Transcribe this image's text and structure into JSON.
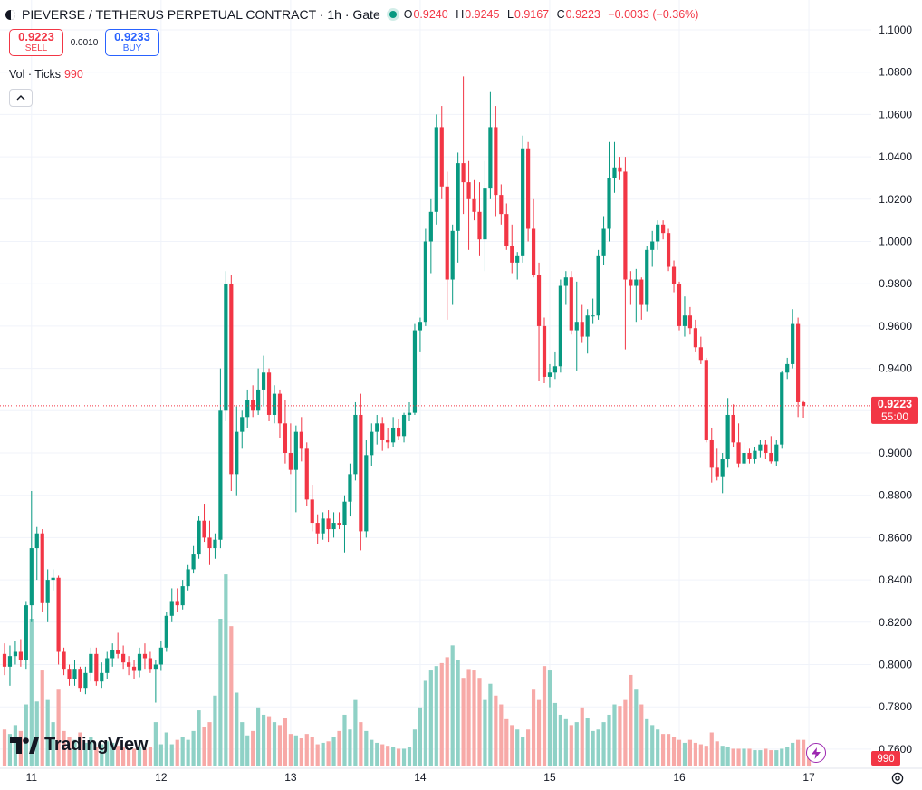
{
  "header": {
    "title": "PIEVERSE / TETHERUS PERPETUAL CONTRACT · 1h · Gate",
    "ohlc": {
      "o_label": "O",
      "o": "0.9240",
      "h_label": "H",
      "h": "0.9245",
      "l_label": "L",
      "l": "0.9167",
      "c_label": "C",
      "c": "0.9223",
      "change": "−0.0033 (−0.36%)"
    }
  },
  "trade": {
    "sell_price": "0.9223",
    "sell_label": "SELL",
    "spread": "0.0010",
    "buy_price": "0.9233",
    "buy_label": "BUY"
  },
  "volume_indicator": {
    "label": "Vol · Ticks",
    "value": "990"
  },
  "price_badge": {
    "price": "0.9223",
    "countdown": "55:00"
  },
  "volume_badge": "990",
  "branding": "TradingView",
  "colors": {
    "up": "#089981",
    "down": "#f23645",
    "up_vol": "#8fd1c6",
    "down_vol": "#f7a9a7",
    "grid": "#f0f3fa"
  },
  "chart_data": {
    "type": "candlestick",
    "interval": "1h",
    "ylim": [
      0.75,
      1.1
    ],
    "y_ticks": [
      "1.1000",
      "1.0800",
      "1.0600",
      "1.0400",
      "1.0200",
      "1.0000",
      "0.9800",
      "0.9600",
      "0.9400",
      "0.9200",
      "0.9000",
      "0.8800",
      "0.8600",
      "0.8400",
      "0.8200",
      "0.8000",
      "0.7800",
      "0.7600"
    ],
    "x_ticks": [
      {
        "label": "11",
        "candle": 5
      },
      {
        "label": "12",
        "candle": 29
      },
      {
        "label": "13",
        "candle": 53
      },
      {
        "label": "14",
        "candle": 77
      },
      {
        "label": "15",
        "candle": 101
      },
      {
        "label": "16",
        "candle": 125
      },
      {
        "label": "17",
        "candle": 149
      }
    ],
    "candles": [
      [
        0.805,
        0.81,
        0.795,
        0.799
      ],
      [
        0.799,
        0.809,
        0.79,
        0.804
      ],
      [
        0.804,
        0.811,
        0.8,
        0.806
      ],
      [
        0.806,
        0.812,
        0.799,
        0.802
      ],
      [
        0.802,
        0.83,
        0.798,
        0.828
      ],
      [
        0.828,
        0.882,
        0.82,
        0.855
      ],
      [
        0.855,
        0.865,
        0.84,
        0.862
      ],
      [
        0.862,
        0.864,
        0.825,
        0.829
      ],
      [
        0.829,
        0.845,
        0.82,
        0.84
      ],
      [
        0.84,
        0.845,
        0.835,
        0.841
      ],
      [
        0.841,
        0.842,
        0.8,
        0.806
      ],
      [
        0.806,
        0.808,
        0.795,
        0.798
      ],
      [
        0.798,
        0.8,
        0.79,
        0.793
      ],
      [
        0.793,
        0.802,
        0.79,
        0.798
      ],
      [
        0.798,
        0.799,
        0.787,
        0.789
      ],
      [
        0.789,
        0.799,
        0.786,
        0.796
      ],
      [
        0.796,
        0.808,
        0.792,
        0.805
      ],
      [
        0.805,
        0.808,
        0.79,
        0.792
      ],
      [
        0.792,
        0.801,
        0.789,
        0.796
      ],
      [
        0.796,
        0.806,
        0.793,
        0.803
      ],
      [
        0.803,
        0.81,
        0.799,
        0.807
      ],
      [
        0.807,
        0.815,
        0.803,
        0.805
      ],
      [
        0.805,
        0.809,
        0.798,
        0.801
      ],
      [
        0.801,
        0.804,
        0.795,
        0.799
      ],
      [
        0.799,
        0.802,
        0.793,
        0.797
      ],
      [
        0.797,
        0.808,
        0.794,
        0.805
      ],
      [
        0.805,
        0.81,
        0.798,
        0.803
      ],
      [
        0.803,
        0.806,
        0.796,
        0.798
      ],
      [
        0.798,
        0.802,
        0.782,
        0.8
      ],
      [
        0.8,
        0.811,
        0.797,
        0.808
      ],
      [
        0.808,
        0.825,
        0.806,
        0.823
      ],
      [
        0.823,
        0.836,
        0.82,
        0.83
      ],
      [
        0.83,
        0.836,
        0.825,
        0.828
      ],
      [
        0.828,
        0.84,
        0.826,
        0.837
      ],
      [
        0.837,
        0.847,
        0.835,
        0.845
      ],
      [
        0.845,
        0.856,
        0.843,
        0.852
      ],
      [
        0.852,
        0.87,
        0.85,
        0.868
      ],
      [
        0.868,
        0.876,
        0.858,
        0.86
      ],
      [
        0.86,
        0.868,
        0.847,
        0.855
      ],
      [
        0.855,
        0.862,
        0.85,
        0.859
      ],
      [
        0.859,
        0.94,
        0.855,
        0.92
      ],
      [
        0.92,
        0.986,
        0.915,
        0.98
      ],
      [
        0.98,
        0.984,
        0.882,
        0.89
      ],
      [
        0.89,
        0.922,
        0.88,
        0.91
      ],
      [
        0.91,
        0.92,
        0.902,
        0.917
      ],
      [
        0.917,
        0.93,
        0.912,
        0.925
      ],
      [
        0.925,
        0.932,
        0.917,
        0.92
      ],
      [
        0.92,
        0.94,
        0.918,
        0.93
      ],
      [
        0.93,
        0.946,
        0.922,
        0.938
      ],
      [
        0.938,
        0.94,
        0.915,
        0.918
      ],
      [
        0.918,
        0.932,
        0.914,
        0.928
      ],
      [
        0.928,
        0.93,
        0.907,
        0.914
      ],
      [
        0.914,
        0.925,
        0.895,
        0.9
      ],
      [
        0.9,
        0.914,
        0.89,
        0.892
      ],
      [
        0.892,
        0.913,
        0.872,
        0.91
      ],
      [
        0.91,
        0.917,
        0.896,
        0.902
      ],
      [
        0.902,
        0.905,
        0.875,
        0.878
      ],
      [
        0.878,
        0.885,
        0.863,
        0.867
      ],
      [
        0.867,
        0.871,
        0.857,
        0.862
      ],
      [
        0.862,
        0.872,
        0.859,
        0.869
      ],
      [
        0.869,
        0.873,
        0.858,
        0.864
      ],
      [
        0.864,
        0.872,
        0.86,
        0.867
      ],
      [
        0.867,
        0.872,
        0.864,
        0.866
      ],
      [
        0.866,
        0.88,
        0.853,
        0.877
      ],
      [
        0.877,
        0.895,
        0.87,
        0.89
      ],
      [
        0.89,
        0.924,
        0.887,
        0.918
      ],
      [
        0.918,
        0.928,
        0.854,
        0.863
      ],
      [
        0.863,
        0.906,
        0.86,
        0.899
      ],
      [
        0.899,
        0.914,
        0.894,
        0.91
      ],
      [
        0.91,
        0.918,
        0.904,
        0.914
      ],
      [
        0.914,
        0.917,
        0.901,
        0.906
      ],
      [
        0.906,
        0.912,
        0.902,
        0.905
      ],
      [
        0.905,
        0.917,
        0.903,
        0.912
      ],
      [
        0.912,
        0.916,
        0.906,
        0.908
      ],
      [
        0.908,
        0.919,
        0.905,
        0.918
      ],
      [
        0.918,
        0.924,
        0.915,
        0.919
      ],
      [
        0.919,
        0.961,
        0.918,
        0.958
      ],
      [
        0.958,
        0.964,
        0.948,
        0.962
      ],
      [
        0.962,
        1.006,
        0.96,
        1.0
      ],
      [
        1.0,
        1.02,
        0.985,
        1.014
      ],
      [
        1.014,
        1.06,
        1.008,
        1.054
      ],
      [
        1.054,
        1.064,
        1.02,
        1.026
      ],
      [
        1.026,
        1.033,
        0.963,
        0.982
      ],
      [
        0.982,
        1.008,
        0.97,
        1.005
      ],
      [
        1.005,
        1.042,
        0.99,
        1.037
      ],
      [
        1.037,
        1.078,
        1.013,
        1.028
      ],
      [
        1.028,
        1.038,
        0.996,
        1.02
      ],
      [
        1.02,
        1.029,
        1.01,
        1.014
      ],
      [
        1.014,
        1.028,
        0.993,
        1.001
      ],
      [
        1.001,
        1.038,
        0.986,
        1.025
      ],
      [
        1.025,
        1.071,
        1.02,
        1.054
      ],
      [
        1.054,
        1.064,
        1.012,
        1.022
      ],
      [
        1.022,
        1.027,
        1.008,
        1.013
      ],
      [
        1.013,
        1.018,
        0.996,
        0.998
      ],
      [
        0.998,
        1.008,
        0.985,
        0.99
      ],
      [
        0.99,
        0.995,
        0.982,
        0.993
      ],
      [
        0.993,
        1.05,
        0.99,
        1.044
      ],
      [
        1.044,
        1.047,
        1.0,
        1.006
      ],
      [
        1.006,
        1.02,
        0.983,
        0.984
      ],
      [
        0.984,
        0.99,
        0.934,
        0.96
      ],
      [
        0.96,
        0.964,
        0.933,
        0.936
      ],
      [
        0.936,
        0.942,
        0.931,
        0.938
      ],
      [
        0.938,
        0.948,
        0.935,
        0.941
      ],
      [
        0.941,
        0.982,
        0.938,
        0.979
      ],
      [
        0.979,
        0.986,
        0.97,
        0.983
      ],
      [
        0.983,
        0.986,
        0.956,
        0.958
      ],
      [
        0.958,
        0.981,
        0.939,
        0.962
      ],
      [
        0.962,
        0.97,
        0.952,
        0.955
      ],
      [
        0.955,
        0.968,
        0.947,
        0.965
      ],
      [
        0.965,
        0.973,
        0.961,
        0.965
      ],
      [
        0.965,
        0.996,
        0.963,
        0.993
      ],
      [
        0.993,
        1.012,
        0.989,
        1.006
      ],
      [
        1.006,
        1.047,
        1.0,
        1.03
      ],
      [
        1.03,
        1.047,
        1.023,
        1.035
      ],
      [
        1.035,
        1.04,
        1.029,
        1.033
      ],
      [
        1.033,
        1.04,
        0.949,
        0.982
      ],
      [
        0.982,
        0.986,
        0.97,
        0.979
      ],
      [
        0.979,
        0.987,
        0.962,
        0.982
      ],
      [
        0.982,
        0.983,
        0.963,
        0.97
      ],
      [
        0.97,
        0.998,
        0.967,
        0.996
      ],
      [
        0.996,
        1.005,
        0.988,
        1.0
      ],
      [
        1.0,
        1.01,
        0.996,
        1.008
      ],
      [
        1.008,
        1.01,
        1.001,
        1.004
      ],
      [
        1.004,
        1.006,
        0.986,
        0.988
      ],
      [
        0.988,
        0.991,
        0.976,
        0.98
      ],
      [
        0.98,
        0.981,
        0.958,
        0.96
      ],
      [
        0.96,
        0.974,
        0.955,
        0.965
      ],
      [
        0.965,
        0.969,
        0.956,
        0.959
      ],
      [
        0.959,
        0.963,
        0.948,
        0.95
      ],
      [
        0.95,
        0.955,
        0.942,
        0.944
      ],
      [
        0.944,
        0.945,
        0.905,
        0.906
      ],
      [
        0.906,
        0.912,
        0.886,
        0.893
      ],
      [
        0.893,
        0.902,
        0.887,
        0.889
      ],
      [
        0.889,
        0.9,
        0.881,
        0.897
      ],
      [
        0.897,
        0.926,
        0.893,
        0.918
      ],
      [
        0.918,
        0.923,
        0.903,
        0.905
      ],
      [
        0.905,
        0.914,
        0.893,
        0.895
      ],
      [
        0.895,
        0.905,
        0.894,
        0.9
      ],
      [
        0.9,
        0.902,
        0.895,
        0.897
      ],
      [
        0.897,
        0.903,
        0.895,
        0.901
      ],
      [
        0.901,
        0.906,
        0.898,
        0.904
      ],
      [
        0.904,
        0.906,
        0.897,
        0.9
      ],
      [
        0.9,
        0.908,
        0.895,
        0.896
      ],
      [
        0.896,
        0.906,
        0.894,
        0.904
      ],
      [
        0.904,
        0.939,
        0.902,
        0.938
      ],
      [
        0.938,
        0.945,
        0.935,
        0.942
      ],
      [
        0.942,
        0.968,
        0.94,
        0.961
      ],
      [
        0.961,
        0.964,
        0.917,
        0.924
      ],
      [
        0.924,
        0.9245,
        0.9167,
        0.9223
      ]
    ],
    "volumes": [
      25,
      22,
      28,
      24,
      42,
      100,
      44,
      65,
      45,
      30,
      52,
      24,
      20,
      18,
      23,
      16,
      20,
      13,
      15,
      17,
      16,
      14,
      13,
      12,
      12,
      13,
      12,
      13,
      30,
      15,
      23,
      15,
      18,
      20,
      18,
      24,
      38,
      27,
      30,
      48,
      100,
      130,
      95,
      50,
      30,
      21,
      24,
      40,
      35,
      34,
      30,
      28,
      33,
      22,
      21,
      19,
      22,
      20,
      15,
      16,
      17,
      20,
      24,
      35,
      25,
      45,
      30,
      24,
      18,
      16,
      15,
      14,
      13,
      12,
      12,
      13,
      25,
      40,
      58,
      65,
      68,
      70,
      74,
      82,
      72,
      60,
      66,
      65,
      60,
      45,
      56,
      48,
      42,
      32,
      28,
      25,
      20,
      25,
      52,
      45,
      68,
      65,
      43,
      35,
      32,
      28,
      30,
      40,
      33,
      24,
      25,
      30,
      35,
      42,
      41,
      45,
      62,
      52,
      42,
      32,
      28,
      25,
      22,
      22,
      20,
      18,
      16,
      18,
      16,
      15,
      14,
      23,
      17,
      14,
      13,
      12,
      12,
      12,
      12,
      11,
      11,
      12,
      11,
      11,
      12,
      13,
      16,
      18,
      18,
      12
    ],
    "volume_down_last": true
  }
}
